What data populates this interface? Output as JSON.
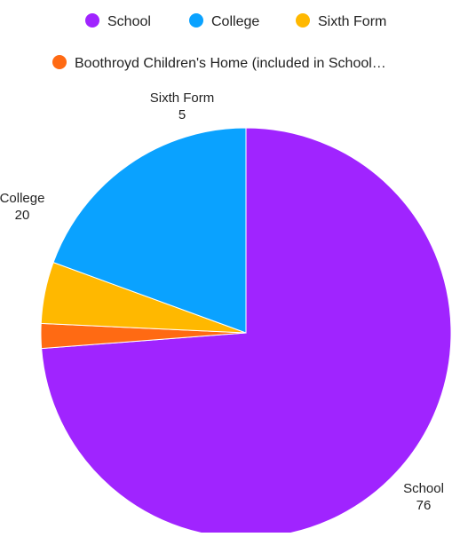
{
  "chart_data": {
    "type": "pie",
    "title": "",
    "legend_position": "top",
    "slices": [
      {
        "label": "School",
        "value": 76,
        "color": "#a024ff",
        "show_label": true
      },
      {
        "label": "Boothroyd Children's Home (included in School…",
        "value": 2,
        "color": "#ff6a13",
        "show_label": false
      },
      {
        "label": "Sixth Form",
        "value": 5,
        "color": "#ffb800",
        "show_label": true
      },
      {
        "label": "College",
        "value": 20,
        "color": "#0aa2ff",
        "show_label": true
      }
    ],
    "legend": [
      {
        "label": "School",
        "color": "#a024ff"
      },
      {
        "label": "College",
        "color": "#0aa2ff"
      },
      {
        "label": "Sixth Form",
        "color": "#ffb800"
      },
      {
        "label": "Boothroyd Children's Home (included in School…",
        "color": "#ff6a13"
      }
    ]
  }
}
